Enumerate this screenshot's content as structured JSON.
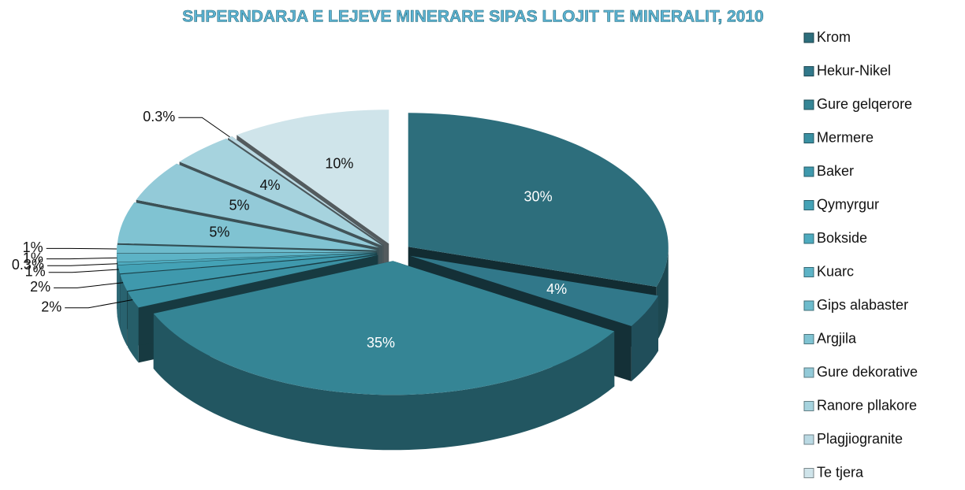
{
  "chart_data": {
    "type": "pie3d",
    "title": "SHPERNDARJA E LEJEVE MINERARE SIPAS LLOJIT TE MINERALIT, 2010",
    "categories": [
      "Krom",
      "Hekur-Nikel",
      "Gure gelqerore",
      "Mermere",
      "Baker",
      "Qymyrgur",
      "Bokside",
      "Kuarc",
      "Gips alabaster",
      "Argjila",
      "Gure  dekorative",
      "Ranore pllakore",
      "Plagjiogranite",
      "Te tjera"
    ],
    "values": [
      30,
      4,
      35,
      2,
      2,
      1,
      0.3,
      1,
      1,
      5,
      5,
      4,
      0.3,
      10
    ],
    "value_labels": [
      "30%",
      "4%",
      "35%",
      "2%",
      "2%",
      "1%",
      "0.3%",
      "1%",
      "1%",
      "5%",
      "5%",
      "4%",
      "0.3%",
      "10%"
    ],
    "colors": [
      "#2d6e7c",
      "#31788a",
      "#358595",
      "#3a90a2",
      "#3f99ad",
      "#44a2b6",
      "#4eabbf",
      "#5db3c6",
      "#6dbbcc",
      "#80c3d2",
      "#93cad8",
      "#a6d3de",
      "#bad9e3",
      "#cfe4ea"
    ],
    "legend": "right"
  }
}
